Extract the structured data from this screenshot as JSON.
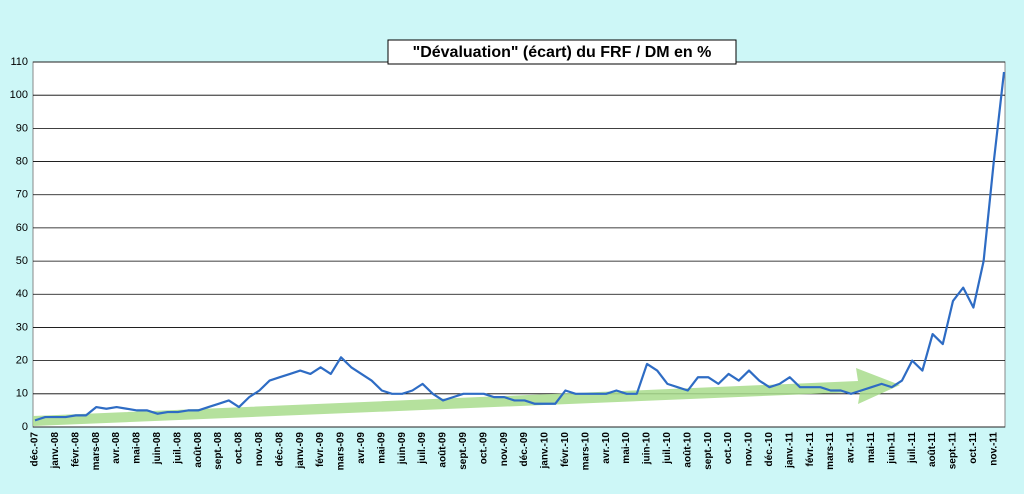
{
  "chart_data": {
    "type": "line",
    "title": "\"Dévaluation\" (écart) du FRF / DM en %",
    "categories": [
      "déc.-07",
      null,
      "janv.-08",
      null,
      "févr.-08",
      null,
      "mars-08",
      null,
      "avr.-08",
      null,
      "mai-08",
      null,
      "juin-08",
      null,
      "juil.-08",
      null,
      "août-08",
      null,
      "sept.-08",
      null,
      "oct.-08",
      null,
      "nov.-08",
      null,
      "déc.-08",
      null,
      "janv.-09",
      null,
      "févr.-09",
      null,
      "mars-09",
      null,
      "avr.-09",
      null,
      "mai-09",
      null,
      "juin-09",
      null,
      "juil.-09",
      null,
      "août-09",
      null,
      "sept.-09",
      null,
      "oct.-09",
      null,
      "nov.-09",
      null,
      "déc.-09",
      null,
      "janv.-10",
      null,
      "févr.-10",
      null,
      "mars-10",
      null,
      "avr.-10",
      null,
      "mai-10",
      null,
      "juin-10",
      null,
      "juil.-10",
      null,
      "août-10",
      null,
      "sept.-10",
      null,
      "oct.-10",
      null,
      "nov.-10",
      null,
      "déc.-10",
      null,
      "janv.-11",
      null,
      "févr.-11",
      null,
      "mars-11",
      null,
      "avr.-11",
      null,
      "mai-11",
      null,
      "juin-11",
      null,
      "juil.-11",
      null,
      "août-11",
      null,
      "sept.-11",
      null,
      "oct.-11",
      null,
      "nov.-11",
      null
    ],
    "series": [
      {
        "name": "FRF / DM",
        "color": "#2e6cc4",
        "values": [
          2,
          3,
          3,
          3,
          3.5,
          3.5,
          6,
          5.5,
          6,
          5.5,
          5,
          5,
          4,
          4.5,
          4.5,
          5,
          5,
          6,
          7,
          8,
          6,
          9,
          11,
          14,
          15,
          16,
          17,
          16,
          18,
          16,
          21,
          18,
          16,
          14,
          11,
          10,
          10,
          11,
          13,
          10,
          8,
          9,
          10,
          10,
          10,
          9,
          9,
          8,
          8,
          7,
          7,
          7,
          11,
          10,
          10,
          10,
          10,
          11,
          10,
          10,
          19,
          17,
          13,
          12,
          11,
          15,
          15,
          13,
          16,
          14,
          17,
          14,
          12,
          13,
          15,
          12,
          12,
          12,
          11,
          11,
          10,
          11,
          12,
          13,
          12,
          14,
          20,
          17,
          28,
          25,
          38,
          42,
          36,
          50,
          80,
          107
        ]
      }
    ],
    "ylim": [
      0,
      110
    ],
    "yticks": [
      0,
      10,
      20,
      30,
      40,
      50,
      60,
      70,
      80,
      90,
      100,
      110
    ],
    "grid": true
  }
}
